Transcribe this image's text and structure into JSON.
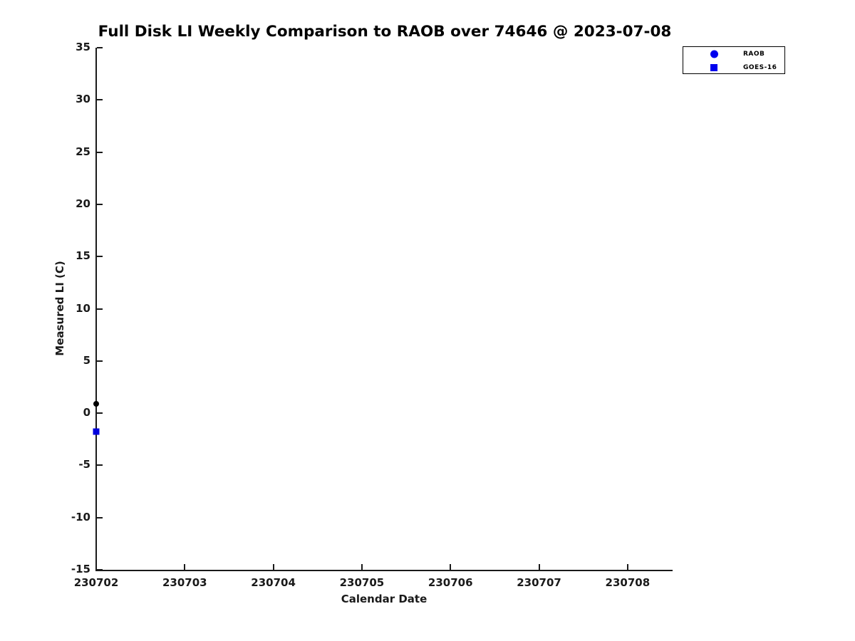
{
  "title": "Full Disk LI Weekly Comparison to RAOB over 74646 @ 2023-07-08",
  "chart_data": {
    "type": "scatter",
    "title": "Full Disk LI Weekly Comparison to RAOB over 74646 @ 2023-07-08",
    "xlabel": "Calendar Date",
    "ylabel": "Measured LI (C)",
    "x_tick_labels": [
      "230702",
      "230703",
      "230704",
      "230705",
      "230706",
      "230707",
      "230708"
    ],
    "x_extent_days": 6.5,
    "y_ticks": [
      -15,
      -10,
      -5,
      0,
      5,
      10,
      15,
      20,
      25,
      30,
      35
    ],
    "ylim": [
      -15,
      35
    ],
    "grid": "off",
    "axis_color": "#1a1a1a",
    "series": [
      {
        "name": "RAOB",
        "marker": "circle",
        "color": "#000000",
        "points": [
          {
            "x": "230702",
            "day": 0,
            "y": 0.9
          }
        ]
      },
      {
        "name": "GOES-16",
        "marker": "square",
        "color": "#0000dd",
        "points": [
          {
            "x": "230702",
            "day": 0,
            "y": -1.8
          }
        ]
      }
    ],
    "legend": {
      "position": "top-right",
      "entries": [
        {
          "label": "RAOB",
          "marker": "circle",
          "color": "#0000ee"
        },
        {
          "label": "GOES-16",
          "marker": "square",
          "color": "#0000ee"
        }
      ]
    }
  }
}
